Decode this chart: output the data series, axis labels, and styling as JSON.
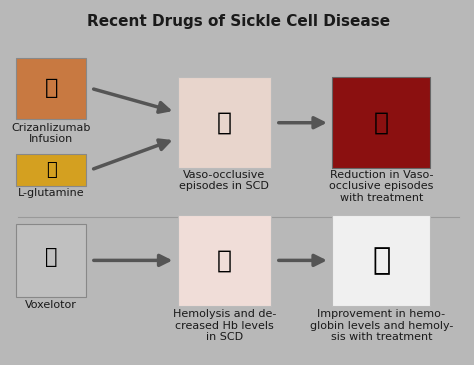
{
  "title": "Recent Drugs of Sickle Cell Disease",
  "background_color": "#b8b8b8",
  "title_fontsize": 11,
  "title_color": "#1a1a1a",
  "top_row": {
    "drug1_label": "Crizanlizumab\nInfusion",
    "drug2_label": "L-glutamine",
    "mid_label": "Vaso-occlusive\nepisodes in SCD",
    "right_label": "Reduction in Vaso-\nocclusive episodes\nwith treatment"
  },
  "bottom_row": {
    "drug_label": "Voxelotor",
    "mid_label": "Hemolysis and de-\ncreased Hb levels\nin SCD",
    "right_label": "Improvement in hemo-\nglobin levels and hemoly-\nsis with treatment"
  },
  "label_fontsize": 8,
  "label_color": "#1a1a1a",
  "arrow_color": "#555555"
}
